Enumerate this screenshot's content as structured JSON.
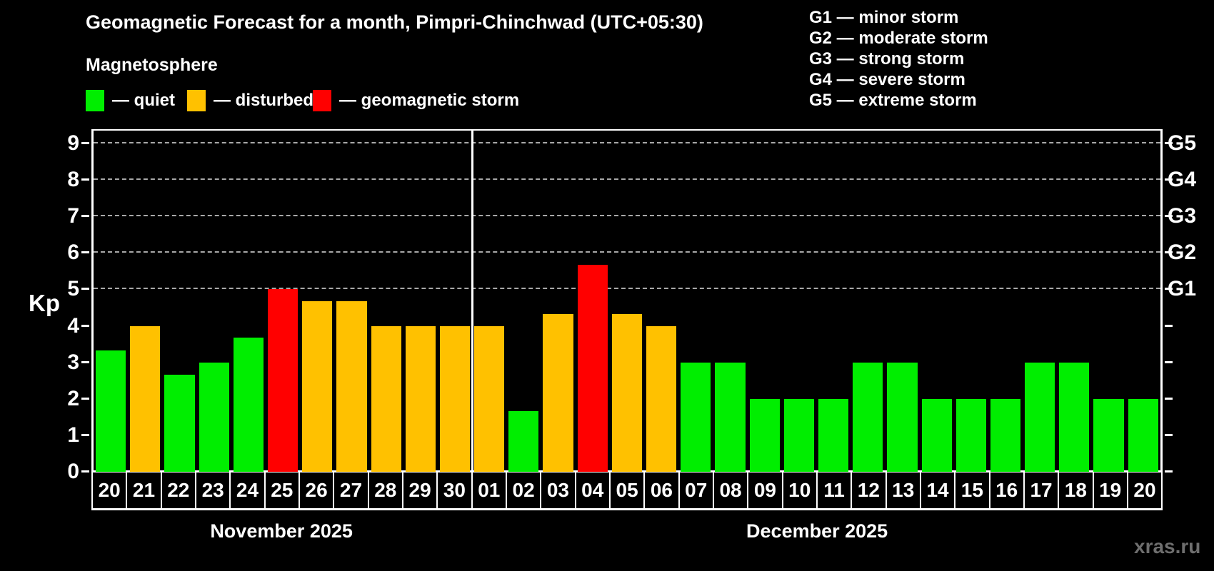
{
  "header": {
    "title": "Geomagnetic Forecast for a month, Pimpri-Chinchwad (UTC+05:30)",
    "subtitle": "Magnetosphere",
    "legend": [
      {
        "name": "quiet",
        "label": "— quiet",
        "color": "#00ee00"
      },
      {
        "name": "disturbed",
        "label": "— disturbed",
        "color": "#ffc100"
      },
      {
        "name": "storm",
        "label": "— geomagnetic storm",
        "color": "#ff0000"
      }
    ],
    "g_scale": [
      "G1 — minor storm",
      "G2 — moderate storm",
      "G3 — strong storm",
      "G4 — severe storm",
      "G5 — extreme storm"
    ]
  },
  "chart_data": {
    "type": "bar",
    "title": "Geomagnetic Forecast for a month, Pimpri-Chinchwad (UTC+05:30)",
    "subtitle": "Magnetosphere",
    "ylabel": "Kp",
    "ylim": [
      0,
      9.35
    ],
    "yticks": [
      0,
      1,
      2,
      3,
      4,
      5,
      6,
      7,
      8,
      9
    ],
    "grid": "horizontal dashed lines at Kp 5-9 (G1-G5 storm levels)",
    "legend_position": "top-left",
    "g_levels": [
      {
        "kp": 5,
        "label": "G1"
      },
      {
        "kp": 6,
        "label": "G2"
      },
      {
        "kp": 7,
        "label": "G3"
      },
      {
        "kp": 8,
        "label": "G4"
      },
      {
        "kp": 9,
        "label": "G5"
      }
    ],
    "colors": {
      "quiet": "#00ee00",
      "disturbed": "#ffc100",
      "storm": "#ff0000"
    },
    "categories": [
      "20",
      "21",
      "22",
      "23",
      "24",
      "25",
      "26",
      "27",
      "28",
      "29",
      "30",
      "01",
      "02",
      "03",
      "04",
      "05",
      "06",
      "07",
      "08",
      "09",
      "10",
      "11",
      "12",
      "13",
      "14",
      "15",
      "16",
      "17",
      "18",
      "19",
      "20"
    ],
    "values": [
      3.33,
      4,
      2.67,
      3,
      3.67,
      5,
      4.67,
      4.67,
      4,
      4,
      4,
      4,
      1.67,
      4.33,
      5.67,
      4.33,
      4,
      3,
      3,
      2,
      2,
      2,
      3,
      3,
      2,
      2,
      2,
      3,
      3,
      2,
      2
    ],
    "levels": [
      "quiet",
      "disturbed",
      "quiet",
      "quiet",
      "quiet",
      "storm",
      "disturbed",
      "disturbed",
      "disturbed",
      "disturbed",
      "disturbed",
      "disturbed",
      "quiet",
      "disturbed",
      "storm",
      "disturbed",
      "disturbed",
      "quiet",
      "quiet",
      "quiet",
      "quiet",
      "quiet",
      "quiet",
      "quiet",
      "quiet",
      "quiet",
      "quiet",
      "quiet",
      "quiet",
      "quiet",
      "quiet"
    ],
    "months": [
      {
        "label": "November 2025",
        "count": 11
      },
      {
        "label": "December 2025",
        "count": 20
      }
    ]
  },
  "watermark": "xras.ru"
}
